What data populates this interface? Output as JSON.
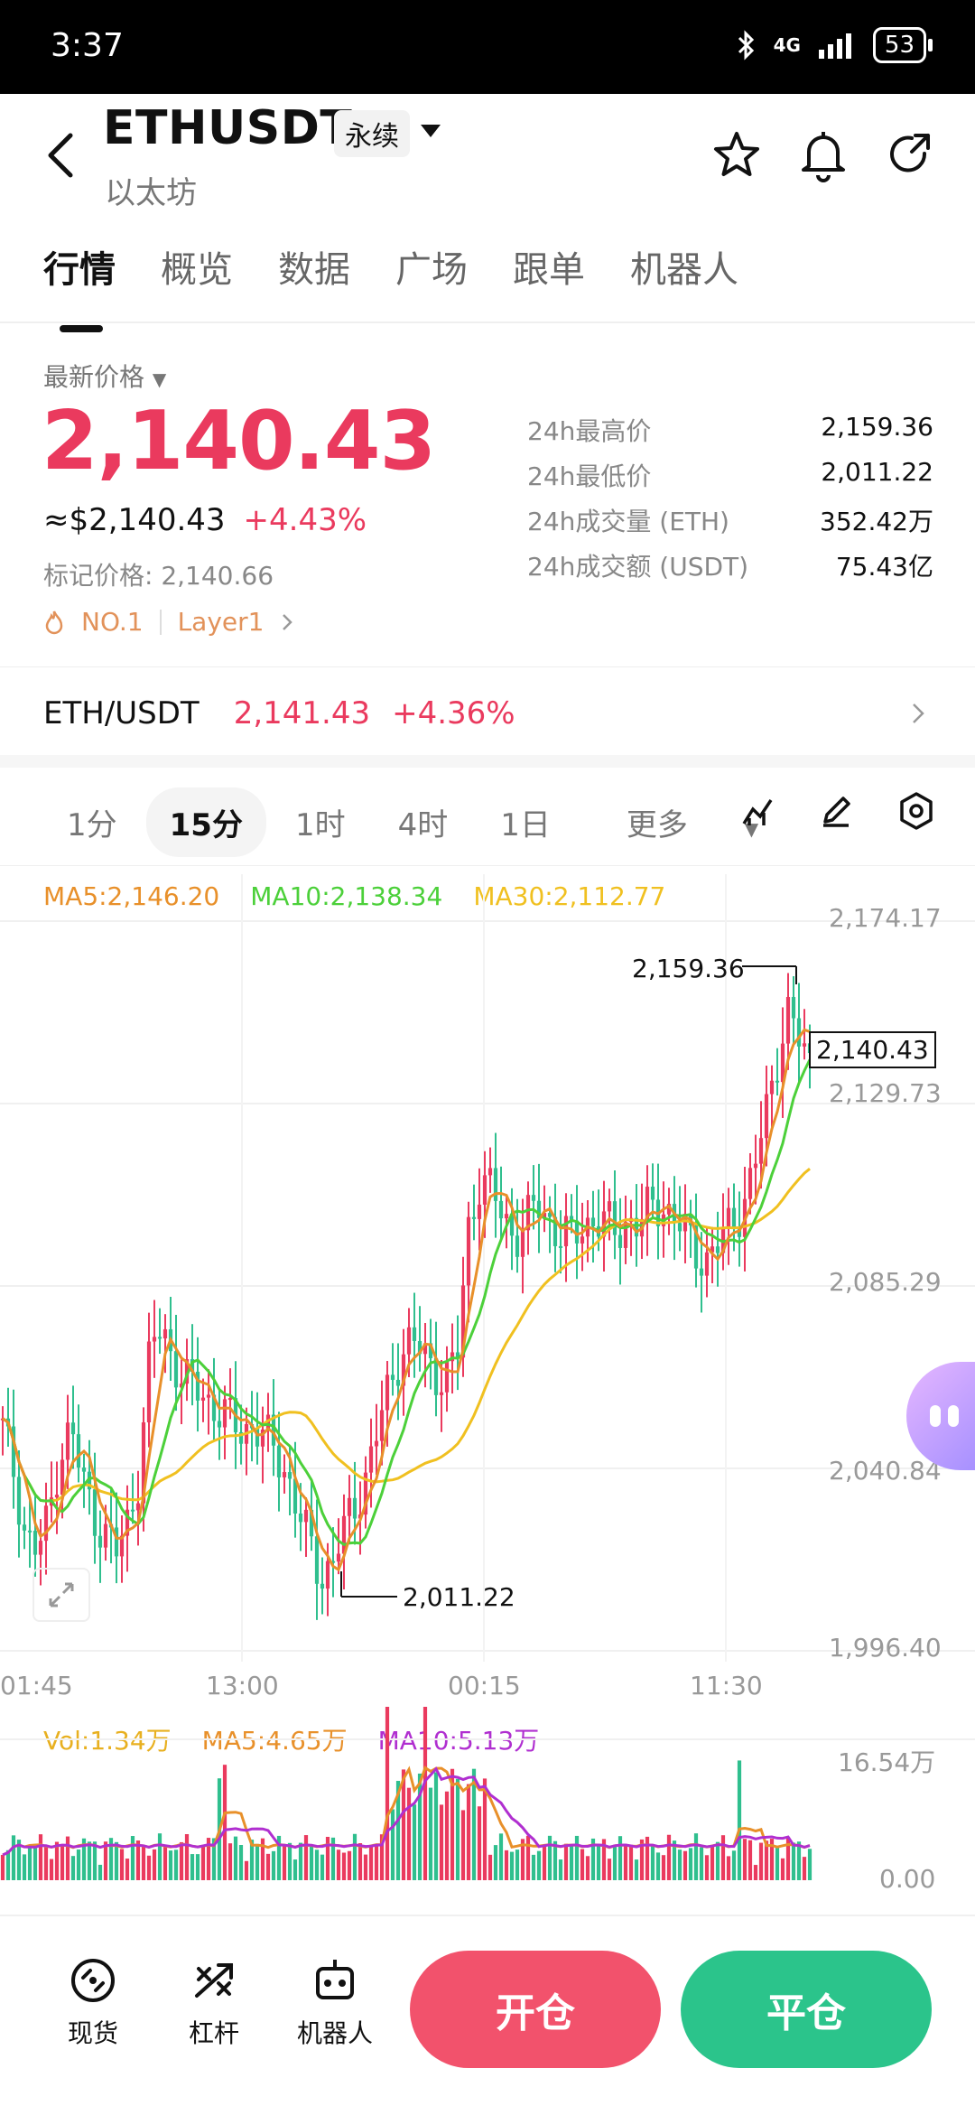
{
  "status": {
    "time": "3:37",
    "network": "4G",
    "battery": "53"
  },
  "header": {
    "symbol": "ETHUSDT",
    "contract_type": "永续",
    "name": "以太坊"
  },
  "tabs": [
    "行情",
    "概览",
    "数据",
    "广场",
    "跟单",
    "机器人"
  ],
  "price_section": {
    "label": "最新价格",
    "last_price": "2,140.43",
    "usd_value": "≈$2,140.43",
    "change": "+4.43%",
    "mark_price": "标记价格: 2,140.66",
    "tag_rank": "NO.1",
    "tag_sector": "Layer1"
  },
  "stats": [
    {
      "label": "24h最高价",
      "value": "2,159.36"
    },
    {
      "label": "24h最低价",
      "value": "2,011.22"
    },
    {
      "label": "24h成交量 (ETH)",
      "value": "352.42万"
    },
    {
      "label": "24h成交额 (USDT)",
      "value": "75.43亿"
    }
  ],
  "spot_pair": {
    "pair": "ETH/USDT",
    "price": "2,141.43",
    "change": "+4.36%"
  },
  "intervals": [
    "1分",
    "15分",
    "1时",
    "4时",
    "1日",
    "更多"
  ],
  "active_interval": "15分",
  "ma_legend": {
    "ma5": "MA5:2,146.20",
    "ma10": "MA10:2,138.34",
    "ma30": "MA30:2,112.77"
  },
  "vol_legend": {
    "vol": "Vol:1.34万",
    "ma5": "MA5:4.65万",
    "ma10": "MA10:5.13万"
  },
  "colors": {
    "up": "#ea3a5e",
    "down": "#2fbf8e",
    "ma5": "#e8902a",
    "ma10": "#4cd03a",
    "ma30": "#f0c020",
    "vol_ma10": "#b02fd0"
  },
  "chart_data": {
    "type": "candlestick",
    "y_axis_ticks": [
      "2,174.17",
      "2,129.73",
      "2,085.29",
      "2,040.84",
      "1,996.40"
    ],
    "ylim": [
      1996.4,
      2174.17
    ],
    "x_axis_ticks": [
      "01:45",
      "13:00",
      "00:15",
      "11:30"
    ],
    "current_price_label": "2,140.43",
    "high_annotation": "2,159.36",
    "low_annotation": "2,011.22",
    "close_path": [
      2050,
      2040,
      2025,
      2020,
      2028,
      2045,
      2050,
      2038,
      2030,
      2025,
      2020,
      2028,
      2040,
      2070,
      2075,
      2068,
      2062,
      2060,
      2058,
      2055,
      2052,
      2050,
      2052,
      2048,
      2045,
      2040,
      2030,
      2022,
      2015,
      2018,
      2025,
      2032,
      2040,
      2050,
      2060,
      2070,
      2072,
      2068,
      2065,
      2063,
      2068,
      2100,
      2112,
      2108,
      2102,
      2098,
      2100,
      2105,
      2102,
      2098,
      2096,
      2100,
      2102,
      2100,
      2098,
      2102,
      2100,
      2104,
      2106,
      2102,
      2098,
      2094,
      2092,
      2095,
      2100,
      2105,
      2112,
      2125,
      2140,
      2152,
      2145,
      2140
    ],
    "volume_axis_ticks": [
      "16.54万",
      "0.00"
    ]
  },
  "bottom_nav": [
    {
      "label": "现货",
      "icon": "spot-icon"
    },
    {
      "label": "杠杆",
      "icon": "leverage-icon"
    },
    {
      "label": "机器人",
      "icon": "robot-icon"
    }
  ],
  "actions": {
    "open": "开仓",
    "close": "平仓"
  }
}
